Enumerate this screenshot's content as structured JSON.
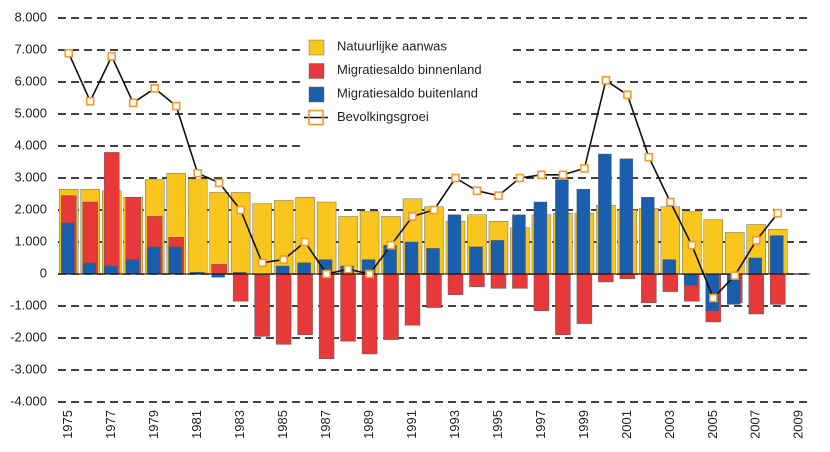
{
  "chart_data": {
    "type": "bar",
    "categories": [
      "1975",
      null,
      "1977",
      null,
      "1979",
      null,
      "1981",
      null,
      "1983",
      null,
      "1985",
      null,
      "1987",
      null,
      "1989",
      null,
      "1991",
      null,
      "1993",
      null,
      "1995",
      null,
      "1997",
      null,
      "1999",
      null,
      "2001",
      null,
      "2003",
      null,
      "2005",
      null,
      "2007",
      null,
      "2009"
    ],
    "series": [
      {
        "name": "Natuurlijke aanwas",
        "type": "bar",
        "color": "#f9c51f",
        "values": [
          2650,
          2650,
          2600,
          2400,
          2950,
          3150,
          2950,
          2550,
          2550,
          2200,
          2300,
          2400,
          2250,
          1800,
          1950,
          1800,
          2350,
          2100,
          1650,
          1850,
          1650,
          1450,
          1850,
          1900,
          1900,
          2150,
          2000,
          2050,
          2100,
          1950,
          1700,
          1300,
          1550,
          1400,
          null
        ]
      },
      {
        "name": "Migratiesaldo binnenland",
        "type": "bar",
        "color": "#e8393a",
        "values": [
          2450,
          2250,
          3800,
          2400,
          1800,
          1150,
          50,
          300,
          -850,
          -1950,
          -2200,
          -1900,
          -2650,
          -2100,
          -2500,
          -2050,
          -1600,
          -1050,
          -650,
          -400,
          -450,
          -450,
          -1150,
          -1900,
          -1550,
          -250,
          -150,
          -900,
          -550,
          -850,
          -1500,
          -900,
          -1250,
          -950,
          null
        ]
      },
      {
        "name": "Migratiesaldo buitenland",
        "type": "bar",
        "color": "#1a5fad",
        "values": [
          1600,
          350,
          250,
          450,
          850,
          850,
          50,
          -100,
          50,
          0,
          250,
          350,
          450,
          250,
          450,
          900,
          1000,
          800,
          1850,
          850,
          1050,
          1850,
          2250,
          2950,
          2650,
          3750,
          3600,
          2400,
          450,
          -350,
          -1150,
          -950,
          500,
          1200,
          null
        ]
      },
      {
        "name": "Bevolkingsgroei",
        "type": "line",
        "color": "#111111",
        "marker_color": "#f39a2a",
        "values": [
          6900,
          5400,
          6800,
          5350,
          5800,
          5250,
          3150,
          2850,
          2000,
          350,
          450,
          1000,
          0,
          150,
          0,
          900,
          1800,
          2000,
          3000,
          2600,
          2450,
          3000,
          3100,
          3100,
          3300,
          6050,
          5600,
          3650,
          2250,
          900,
          -750,
          -50,
          1050,
          1900,
          null
        ]
      }
    ],
    "ylim": [
      -4000,
      8000
    ],
    "yticks": [
      {
        "value": -4000,
        "label": "-4.000"
      },
      {
        "value": -3000,
        "label": "-3.000"
      },
      {
        "value": -2000,
        "label": "-2.000"
      },
      {
        "value": -1000,
        "label": "-1.000"
      },
      0,
      {
        "value": 1000,
        "label": "1.000"
      },
      {
        "value": 2000,
        "label": "2.000"
      },
      {
        "value": 3000,
        "label": "3.000"
      },
      {
        "value": 4000,
        "label": "4.000"
      },
      {
        "value": 5000,
        "label": "5.000"
      },
      {
        "value": 6000,
        "label": "6.000"
      },
      {
        "value": 7000,
        "label": "7.000"
      },
      {
        "value": 8000,
        "label": "8.000"
      }
    ],
    "grid": true,
    "grid_style": "dashed",
    "legend": "top"
  }
}
